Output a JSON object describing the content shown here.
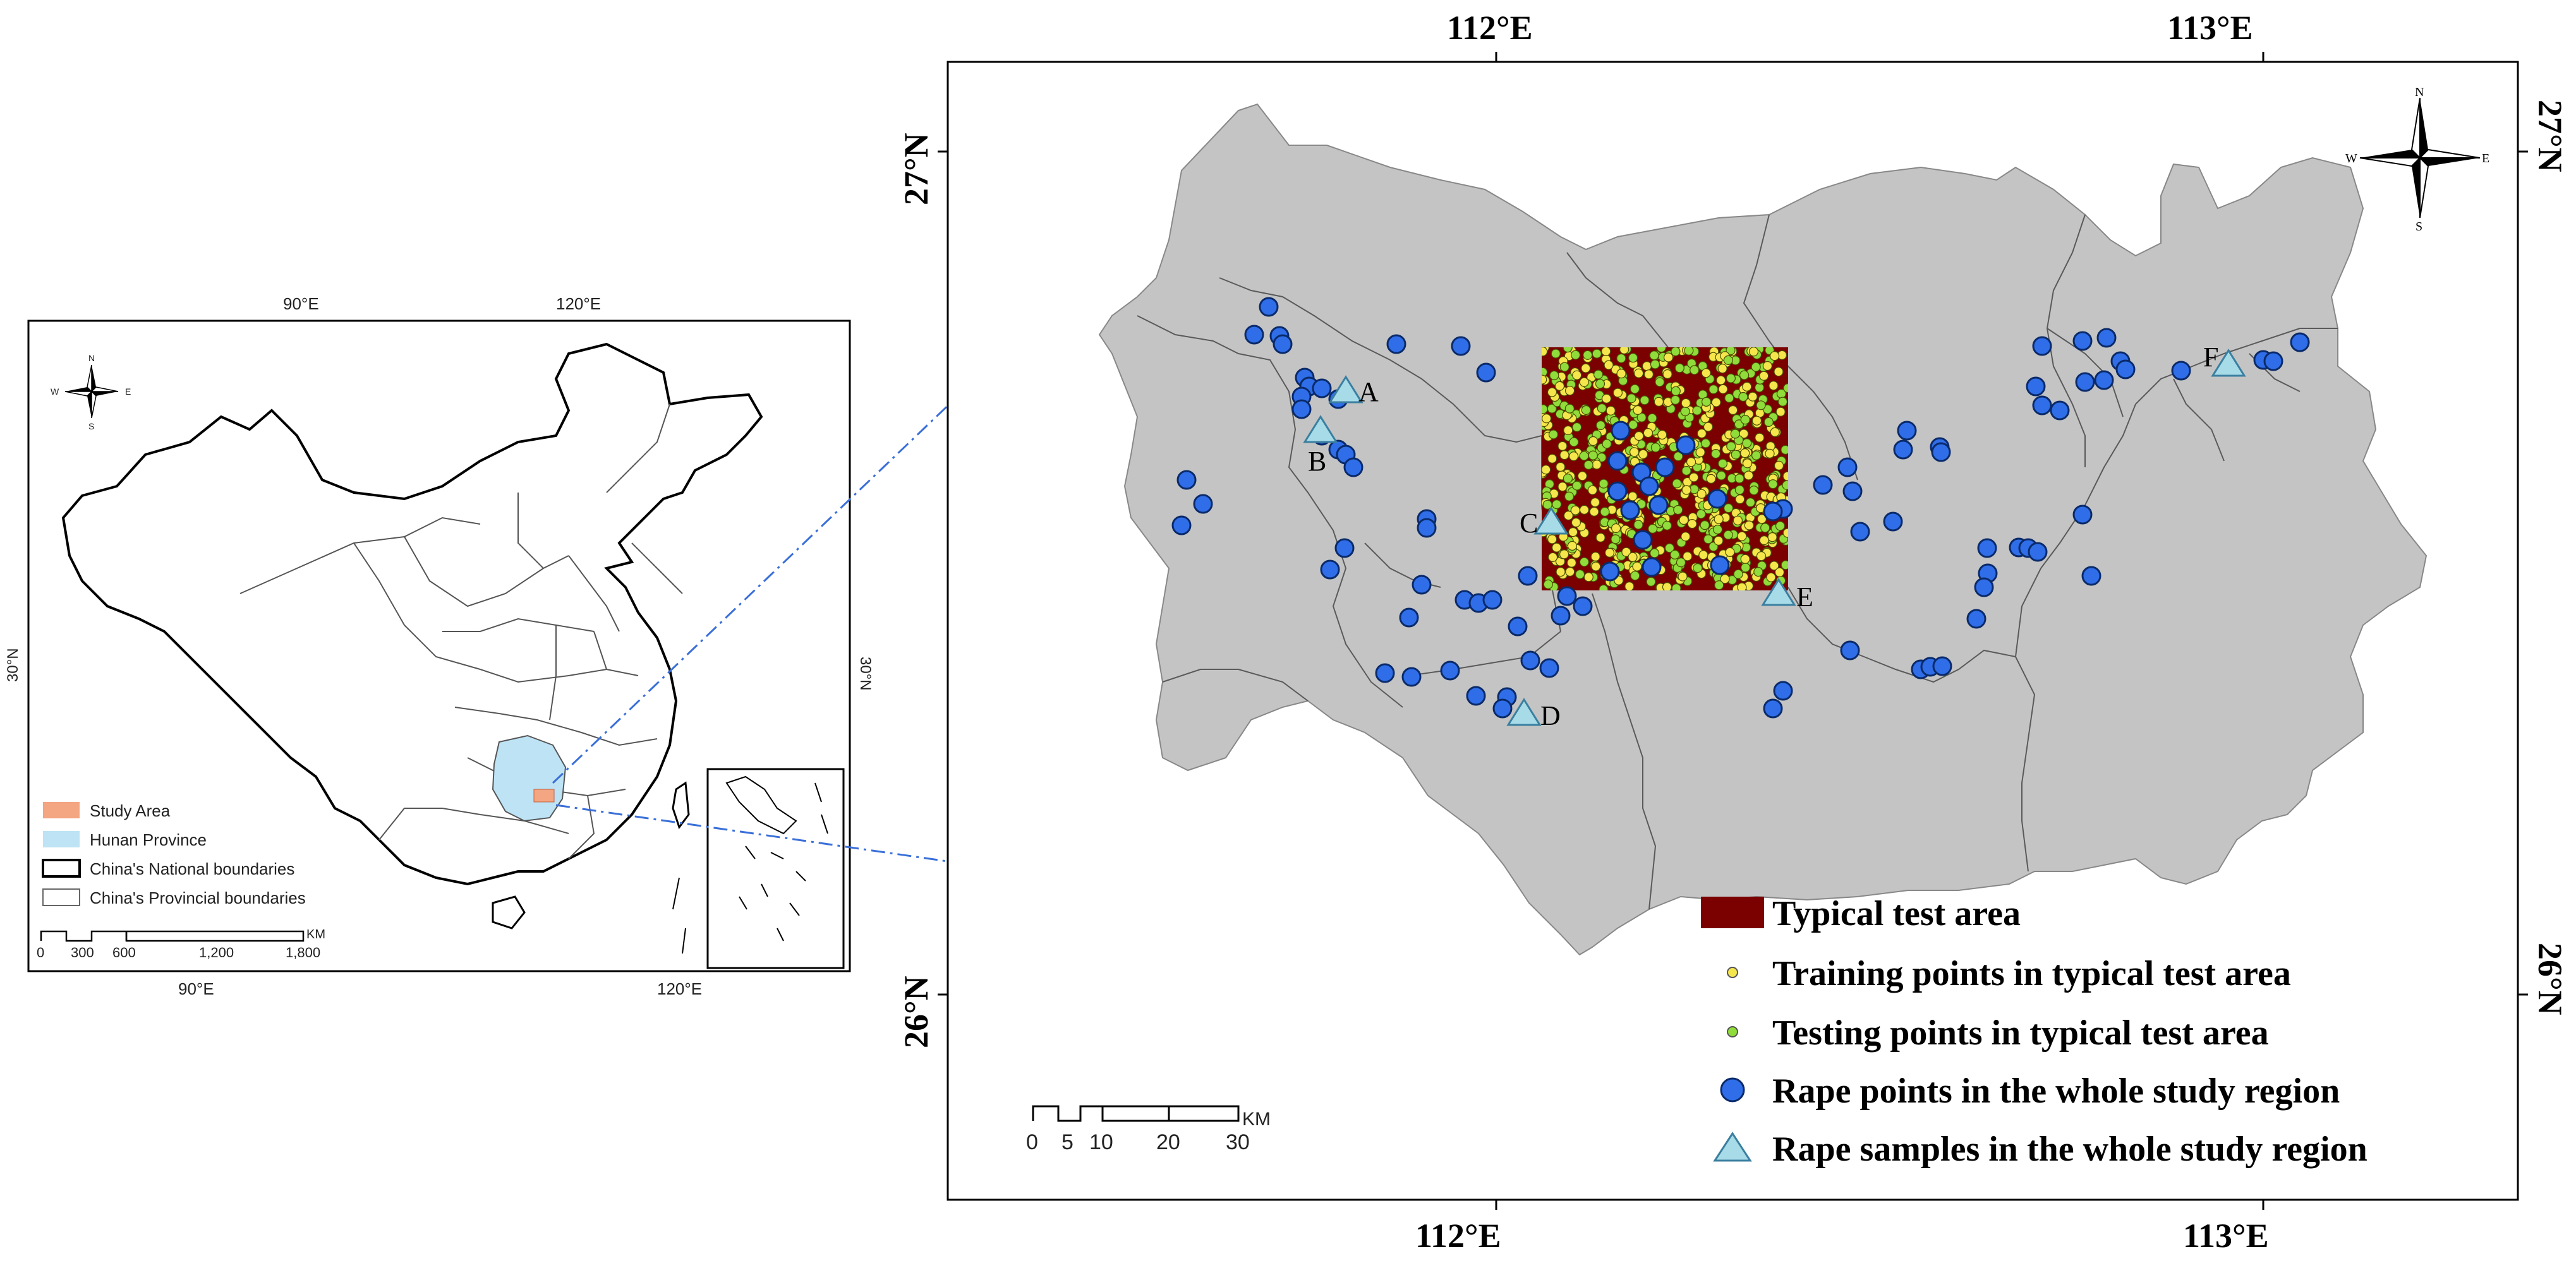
{
  "inset_map": {
    "graticule_top": [
      "90°E",
      "120°E"
    ],
    "graticule_bottom": [
      "90°E",
      "120°E"
    ],
    "graticule_side": [
      "30°N",
      "30°N"
    ],
    "compass": {
      "n": "N",
      "s": "S",
      "e": "E",
      "w": "W"
    },
    "legend": [
      {
        "label": "Study Area",
        "color": "#f4a582"
      },
      {
        "label": "Hunan Province",
        "color": "#bde3f5"
      },
      {
        "label": "China's National boundaries",
        "color": "#000000"
      },
      {
        "label": "China's Provincial boundaries",
        "color": "#666666"
      }
    ],
    "scale": {
      "ticks": [
        "0",
        "300",
        "600",
        "1,200",
        "1,800"
      ],
      "unit": "KM"
    }
  },
  "main_map": {
    "lon_labels_top": [
      "112°E",
      "113°E"
    ],
    "lon_labels_bottom": [
      "112°E",
      "113°E"
    ],
    "lat_labels_left": [
      "27°N",
      "26°N"
    ],
    "lat_labels_right": [
      "27°N",
      "26°N"
    ],
    "compass": {
      "n": "N",
      "s": "S",
      "e": "E",
      "w": "W"
    },
    "sample_labels": [
      "A",
      "B",
      "C",
      "D",
      "E",
      "F"
    ],
    "scale": {
      "ticks": [
        "0",
        "5",
        "10",
        "20",
        "30"
      ],
      "unit": "KM"
    },
    "legend": [
      {
        "label": "Typical test area",
        "color": "#7b0000"
      },
      {
        "label": "Training points in typical test area",
        "color": "#f5e64c"
      },
      {
        "label": "Testing points in typical test area",
        "color": "#8fdc3a"
      },
      {
        "label": "Rape points in the whole study region",
        "color": "#2f6ee8"
      },
      {
        "label": "Rape samples in the whole study region",
        "color": "#a8dbe8"
      }
    ]
  }
}
